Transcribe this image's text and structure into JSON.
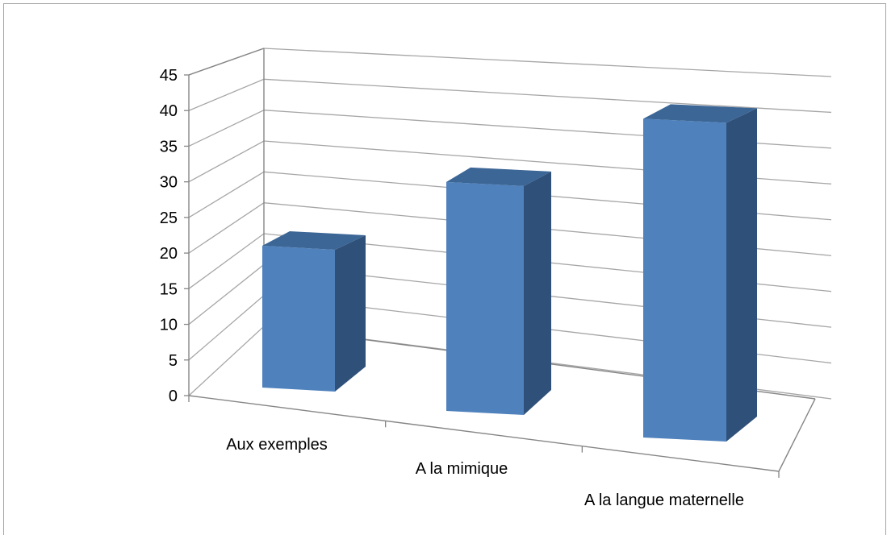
{
  "chart_data": {
    "type": "bar",
    "style": "3d-column",
    "categories": [
      "Aux exemples",
      "A la mimique",
      "A la langue maternelle"
    ],
    "values": [
      20,
      31,
      41
    ],
    "yticks": [
      "0",
      "5",
      "10",
      "15",
      "20",
      "25",
      "30",
      "35",
      "40",
      "45"
    ],
    "ylim": [
      0,
      45
    ],
    "title": "",
    "xlabel": "",
    "ylabel": "",
    "grid": true,
    "legend": "none"
  },
  "colors": {
    "bar_front": "#4f81bd",
    "bar_side": "#2f5179",
    "bar_top": "#3c6696",
    "grid": "#a6a6a6",
    "axis": "#868686"
  }
}
